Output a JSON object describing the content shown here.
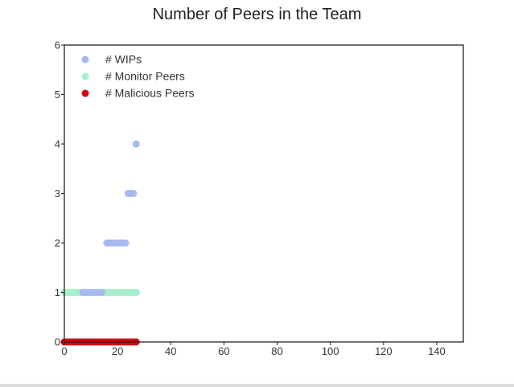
{
  "chart_data": {
    "type": "scatter",
    "title": "Number of Peers in the Team",
    "xlabel": "",
    "ylabel": "",
    "xlim": [
      0,
      150
    ],
    "ylim": [
      0,
      6
    ],
    "xticks": [
      0,
      20,
      40,
      60,
      80,
      100,
      120,
      140
    ],
    "yticks": [
      0,
      1,
      2,
      3,
      4,
      5,
      6
    ],
    "grid": false,
    "legend_position": "top-left",
    "series": [
      {
        "name": "# Malicious Peers",
        "color": "#d7000f",
        "points": [
          [
            0,
            0
          ],
          [
            1,
            0
          ],
          [
            2,
            0
          ],
          [
            3,
            0
          ],
          [
            4,
            0
          ],
          [
            5,
            0
          ],
          [
            6,
            0
          ],
          [
            7,
            0
          ],
          [
            8,
            0
          ],
          [
            9,
            0
          ],
          [
            10,
            0
          ],
          [
            11,
            0
          ],
          [
            12,
            0
          ],
          [
            13,
            0
          ],
          [
            14,
            0
          ],
          [
            15,
            0
          ],
          [
            16,
            0
          ],
          [
            17,
            0
          ],
          [
            18,
            0
          ],
          [
            19,
            0
          ],
          [
            20,
            0
          ],
          [
            21,
            0
          ],
          [
            22,
            0
          ],
          [
            23,
            0
          ],
          [
            24,
            0
          ],
          [
            25,
            0
          ],
          [
            26,
            0
          ],
          [
            27,
            0
          ]
        ]
      },
      {
        "name": "# Monitor Peers",
        "color": "#a5efcb",
        "points": [
          [
            0,
            1
          ],
          [
            1,
            1
          ],
          [
            2,
            1
          ],
          [
            3,
            1
          ],
          [
            4,
            1
          ],
          [
            5,
            1
          ],
          [
            6,
            1
          ],
          [
            15,
            1
          ],
          [
            16,
            1
          ],
          [
            17,
            1
          ],
          [
            18,
            1
          ],
          [
            19,
            1
          ],
          [
            20,
            1
          ],
          [
            21,
            1
          ],
          [
            22,
            1
          ],
          [
            23,
            1
          ],
          [
            24,
            1
          ],
          [
            25,
            1
          ],
          [
            26,
            1
          ],
          [
            27,
            1
          ]
        ]
      },
      {
        "name": "# WIPs",
        "color": "#a9b8ef",
        "points": [
          [
            7,
            1
          ],
          [
            8,
            1
          ],
          [
            9,
            1
          ],
          [
            10,
            1
          ],
          [
            11,
            1
          ],
          [
            12,
            1
          ],
          [
            13,
            1
          ],
          [
            14,
            1
          ],
          [
            16,
            2
          ],
          [
            17,
            2
          ],
          [
            18,
            2
          ],
          [
            19,
            2
          ],
          [
            20,
            2
          ],
          [
            21,
            2
          ],
          [
            22,
            2
          ],
          [
            23,
            2
          ],
          [
            24,
            3
          ],
          [
            25,
            3
          ],
          [
            26,
            3
          ],
          [
            27,
            4
          ]
        ]
      }
    ],
    "legend_order": [
      "# WIPs",
      "# Monitor Peers",
      "# Malicious Peers"
    ]
  }
}
